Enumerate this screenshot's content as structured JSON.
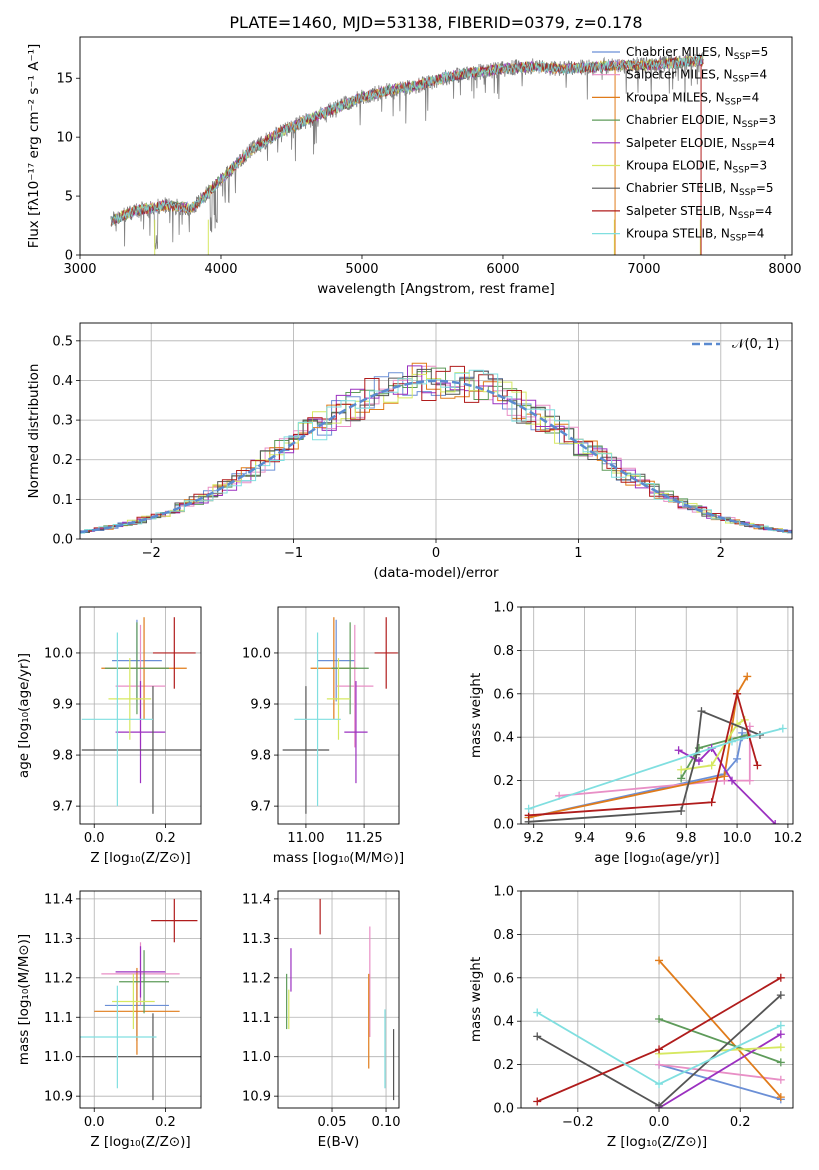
{
  "title": "PLATE=1460, MJD=53138, FIBERID=0379, z=0.178",
  "colors": {
    "Chabrier MILES": "#6b8fd6",
    "Salpeter MILES": "#e88fc6",
    "Kroupa MILES": "#e07b1a",
    "Chabrier ELODIE": "#5e9b5a",
    "Salpeter ELODIE": "#9b30c0",
    "Kroupa ELODIE": "#d6e860",
    "Chabrier STELIB": "#555555",
    "Salpeter STELIB": "#b01c1c",
    "Kroupa STELIB": "#80dfe0"
  },
  "legend_spectrum": [
    {
      "name": "Chabrier MILES",
      "label": "Chabrier MILES, N",
      "sub": "SSP",
      "tail": "=5"
    },
    {
      "name": "Salpeter MILES",
      "label": "Salpeter MILES, N",
      "sub": "SSP",
      "tail": "=4"
    },
    {
      "name": "Kroupa MILES",
      "label": "Kroupa MILES, N",
      "sub": "SSP",
      "tail": "=4"
    },
    {
      "name": "Chabrier ELODIE",
      "label": "Chabrier ELODIE, N",
      "sub": "SSP",
      "tail": "=3"
    },
    {
      "name": "Salpeter ELODIE",
      "label": "Salpeter ELODIE, N",
      "sub": "SSP",
      "tail": "=4"
    },
    {
      "name": "Kroupa ELODIE",
      "label": "Kroupa ELODIE, N",
      "sub": "SSP",
      "tail": "=3"
    },
    {
      "name": "Chabrier STELIB",
      "label": "Chabrier STELIB, N",
      "sub": "SSP",
      "tail": "=5"
    },
    {
      "name": "Salpeter STELIB",
      "label": "Salpeter STELIB, N",
      "sub": "SSP",
      "tail": "=4"
    },
    {
      "name": "Kroupa STELIB",
      "label": "Kroupa STELIB, N",
      "sub": "SSP",
      "tail": "=4"
    }
  ],
  "chart_data": [
    {
      "id": "spectrum",
      "type": "line",
      "xlabel": "wavelength [Angstrom, rest frame]",
      "ylabel": "Flux [fλ10⁻¹⁷ erg cm⁻² s⁻¹ A⁻¹]",
      "xlim": [
        3000,
        8050
      ],
      "ylim": [
        0,
        18.5
      ],
      "xticks": [
        3000,
        4000,
        5000,
        6000,
        7000,
        8000
      ],
      "yticks": [
        0,
        5,
        10,
        15
      ],
      "grid": false,
      "legend": "upper right",
      "continuum": {
        "x": [
          3220,
          3400,
          3600,
          3800,
          4000,
          4200,
          4400,
          4600,
          4800,
          5000,
          5200,
          5400,
          5600,
          5800,
          6000,
          6200,
          6400,
          6600,
          6800,
          7000,
          7200,
          7400
        ],
        "y": [
          2.9,
          3.8,
          4.2,
          4.0,
          6.4,
          8.8,
          10.3,
          11.4,
          12.4,
          13.4,
          14.0,
          14.4,
          15.1,
          15.5,
          15.8,
          16.0,
          15.8,
          15.9,
          16.1,
          16.1,
          16.3,
          16.5
        ]
      }
    },
    {
      "id": "residual-histogram",
      "type": "histogram",
      "xlabel": "(data-model)/error",
      "ylabel": "Normed distribution",
      "xlim": [
        -2.5,
        2.5
      ],
      "ylim": [
        0,
        0.545
      ],
      "xticks": [
        -2,
        -1,
        0,
        1,
        2
      ],
      "yticks": [
        0.0,
        0.1,
        0.2,
        0.3,
        0.4,
        0.5
      ],
      "grid": true,
      "legend": "upper right",
      "reference_curve": "𝒩(0, 1)",
      "bin_width": 0.1
    },
    {
      "id": "age-vs-Z",
      "type": "errorbar",
      "xlabel": "Z [log₁₀(Z/Z⊙)]",
      "ylabel": "age  [log₁₀(age/yr)]",
      "xlim": [
        -0.04,
        0.3
      ],
      "ylim": [
        9.665,
        10.09
      ],
      "xticks": [
        0.0,
        0.2
      ],
      "yticks": [
        9.7,
        9.8,
        9.9,
        10.0
      ],
      "grid": true,
      "points": [
        {
          "name": "Chabrier MILES",
          "x": 0.12,
          "xerr": 0.07,
          "y": 9.985,
          "yerr": 0.08
        },
        {
          "name": "Salpeter MILES",
          "x": 0.13,
          "xerr": 0.07,
          "y": 9.935,
          "yerr": 0.12
        },
        {
          "name": "Kroupa MILES",
          "x": 0.14,
          "xerr": 0.12,
          "y": 9.97,
          "yerr": 0.1
        },
        {
          "name": "Chabrier ELODIE",
          "x": 0.12,
          "xerr": 0.09,
          "y": 9.97,
          "yerr": 0.09
        },
        {
          "name": "Salpeter ELODIE",
          "x": 0.13,
          "xerr": 0.07,
          "y": 9.845,
          "yerr": 0.1
        },
        {
          "name": "Kroupa ELODIE",
          "x": 0.1,
          "xerr": 0.06,
          "y": 9.91,
          "yerr": 0.08
        },
        {
          "name": "Chabrier STELIB",
          "x": 0.165,
          "xerr": 0.2,
          "y": 9.81,
          "yerr": 0.125
        },
        {
          "name": "Salpeter STELIB",
          "x": 0.225,
          "xerr": 0.06,
          "y": 10.0,
          "yerr": 0.07
        },
        {
          "name": "Kroupa STELIB",
          "x": 0.065,
          "xerr": 0.1,
          "y": 9.87,
          "yerr": 0.17
        }
      ]
    },
    {
      "id": "age-vs-mass",
      "type": "errorbar",
      "xlabel": "mass [log₁₀(M/M⊙)]",
      "ylabel": "",
      "xlim": [
        10.88,
        11.4
      ],
      "ylim": [
        9.665,
        10.09
      ],
      "xticks": [
        11.0,
        11.25
      ],
      "yticks": [
        9.7,
        9.8,
        9.9,
        10.0
      ],
      "grid": true,
      "points": [
        {
          "name": "Chabrier MILES",
          "x": 11.13,
          "xerr": 0.08,
          "y": 9.985,
          "yerr": 0.08
        },
        {
          "name": "Salpeter MILES",
          "x": 11.21,
          "xerr": 0.08,
          "y": 9.935,
          "yerr": 0.12
        },
        {
          "name": "Kroupa MILES",
          "x": 11.12,
          "xerr": 0.1,
          "y": 9.97,
          "yerr": 0.1
        },
        {
          "name": "Chabrier ELODIE",
          "x": 11.19,
          "xerr": 0.08,
          "y": 9.97,
          "yerr": 0.09
        },
        {
          "name": "Salpeter ELODIE",
          "x": 11.215,
          "xerr": 0.05,
          "y": 9.845,
          "yerr": 0.1
        },
        {
          "name": "Kroupa ELODIE",
          "x": 11.14,
          "xerr": 0.05,
          "y": 9.91,
          "yerr": 0.08
        },
        {
          "name": "Chabrier STELIB",
          "x": 11.0,
          "xerr": 0.1,
          "y": 9.81,
          "yerr": 0.125
        },
        {
          "name": "Salpeter STELIB",
          "x": 11.345,
          "xerr": 0.05,
          "y": 10.0,
          "yerr": 0.07
        },
        {
          "name": "Kroupa STELIB",
          "x": 11.05,
          "xerr": 0.1,
          "y": 9.87,
          "yerr": 0.17
        }
      ]
    },
    {
      "id": "mass-weight-vs-age",
      "type": "line",
      "xlabel": "age  [log₁₀(age/yr)]",
      "ylabel": "mass weight",
      "xlim": [
        9.15,
        10.22
      ],
      "ylim": [
        0,
        1
      ],
      "xticks": [
        9.2,
        9.4,
        9.6,
        9.8,
        10.0,
        10.2
      ],
      "yticks": [
        0.0,
        0.2,
        0.4,
        0.6,
        0.8,
        1.0
      ],
      "grid": true,
      "series": [
        {
          "name": "Chabrier MILES",
          "x": [
            9.18,
            9.95,
            10.0,
            10.02,
            10.02
          ],
          "y": [
            0.03,
            0.23,
            0.3,
            0.42,
            0.4
          ]
        },
        {
          "name": "Salpeter MILES",
          "x": [
            9.3,
            9.95,
            10.05,
            10.05
          ],
          "y": [
            0.13,
            0.2,
            0.2,
            0.45
          ]
        },
        {
          "name": "Kroupa MILES",
          "x": [
            9.18,
            9.95,
            10.0,
            10.04
          ],
          "y": [
            0.03,
            0.22,
            0.6,
            0.68
          ]
        },
        {
          "name": "Chabrier ELODIE",
          "x": [
            9.78,
            9.85,
            10.04
          ],
          "y": [
            0.21,
            0.35,
            0.41
          ]
        },
        {
          "name": "Salpeter ELODIE",
          "x": [
            9.77,
            9.85,
            9.9,
            9.98,
            10.15
          ],
          "y": [
            0.34,
            0.29,
            0.35,
            0.2,
            0.0
          ]
        },
        {
          "name": "Kroupa ELODIE",
          "x": [
            9.78,
            9.9,
            10.0,
            10.03
          ],
          "y": [
            0.25,
            0.27,
            0.46,
            0.48
          ]
        },
        {
          "name": "Chabrier STELIB",
          "x": [
            9.18,
            9.78,
            9.84,
            9.86,
            10.09
          ],
          "y": [
            0.01,
            0.06,
            0.32,
            0.52,
            0.41
          ]
        },
        {
          "name": "Salpeter STELIB",
          "x": [
            9.18,
            9.9,
            10.0,
            10.08
          ],
          "y": [
            0.04,
            0.1,
            0.6,
            0.27
          ]
        },
        {
          "name": "Kroupa STELIB",
          "x": [
            9.18,
            9.98,
            10.18
          ],
          "y": [
            0.07,
            0.38,
            0.44
          ]
        }
      ]
    },
    {
      "id": "mass-vs-Z",
      "type": "errorbar",
      "xlabel": "Z [log₁₀(Z/Z⊙)]",
      "ylabel": "mass [log₁₀(M/M⊙)]",
      "xlim": [
        -0.04,
        0.3
      ],
      "ylim": [
        10.87,
        11.42
      ],
      "xticks": [
        0.0,
        0.2
      ],
      "yticks": [
        10.9,
        11.0,
        11.1,
        11.2,
        11.3,
        11.4
      ],
      "grid": true,
      "points": [
        {
          "name": "Chabrier MILES",
          "x": 0.12,
          "xerr": 0.09,
          "y": 11.13,
          "yerr": 0.09
        },
        {
          "name": "Salpeter MILES",
          "x": 0.13,
          "xerr": 0.11,
          "y": 11.21,
          "yerr": 0.08
        },
        {
          "name": "Kroupa MILES",
          "x": 0.12,
          "xerr": 0.12,
          "y": 11.115,
          "yerr": 0.11
        },
        {
          "name": "Chabrier ELODIE",
          "x": 0.14,
          "xerr": 0.07,
          "y": 11.19,
          "yerr": 0.08
        },
        {
          "name": "Salpeter ELODIE",
          "x": 0.13,
          "xerr": 0.07,
          "y": 11.215,
          "yerr": 0.065
        },
        {
          "name": "Kroupa ELODIE",
          "x": 0.11,
          "xerr": 0.06,
          "y": 11.14,
          "yerr": 0.07
        },
        {
          "name": "Chabrier STELIB",
          "x": 0.165,
          "xerr": 0.2,
          "y": 11.0,
          "yerr": 0.11
        },
        {
          "name": "Salpeter STELIB",
          "x": 0.225,
          "xerr": 0.065,
          "y": 11.345,
          "yerr": 0.055
        },
        {
          "name": "Kroupa STELIB",
          "x": 0.065,
          "xerr": 0.11,
          "y": 11.05,
          "yerr": 0.13
        }
      ]
    },
    {
      "id": "mass-vs-EBV",
      "type": "errorbar",
      "xlabel": "E(B-V)",
      "ylabel": "",
      "xlim": [
        0.0,
        0.112
      ],
      "ylim": [
        10.87,
        11.42
      ],
      "xticks": [
        0.05,
        0.1
      ],
      "yticks": [
        10.9,
        11.0,
        11.1,
        11.2,
        11.3,
        11.4
      ],
      "grid": true,
      "points": [
        {
          "name": "Salpeter MILES",
          "x": 0.085,
          "xerr": 0,
          "y": 11.19,
          "yerr": 0.14
        },
        {
          "name": "Kroupa MILES",
          "x": 0.084,
          "xerr": 0,
          "y": 11.09,
          "yerr": 0.12
        },
        {
          "name": "Chabrier ELODIE",
          "x": 0.008,
          "xerr": 0,
          "y": 11.14,
          "yerr": 0.07
        },
        {
          "name": "Salpeter ELODIE",
          "x": 0.012,
          "xerr": 0,
          "y": 11.22,
          "yerr": 0.055
        },
        {
          "name": "Kroupa ELODIE",
          "x": 0.01,
          "xerr": 0,
          "y": 11.12,
          "yerr": 0.05
        },
        {
          "name": "Chabrier STELIB",
          "x": 0.107,
          "xerr": 0,
          "y": 10.98,
          "yerr": 0.09
        },
        {
          "name": "Salpeter STELIB",
          "x": 0.039,
          "xerr": 0,
          "y": 11.355,
          "yerr": 0.045
        },
        {
          "name": "Kroupa STELIB",
          "x": 0.099,
          "xerr": 0,
          "y": 11.02,
          "yerr": 0.1
        }
      ]
    },
    {
      "id": "mass-weight-vs-Z",
      "type": "line",
      "xlabel": "Z [log₁₀(Z/Z⊙)]",
      "ylabel": "mass weight",
      "xlim": [
        -0.34,
        0.33
      ],
      "ylim": [
        0,
        1
      ],
      "xticks": [
        -0.2,
        0.0,
        0.2
      ],
      "yticks": [
        0.0,
        0.2,
        0.4,
        0.6,
        0.8,
        1.0
      ],
      "grid": true,
      "series": [
        {
          "name": "Chabrier MILES",
          "x": [
            0.0,
            0.3
          ],
          "y": [
            0.2,
            0.04
          ]
        },
        {
          "name": "Salpeter MILES",
          "x": [
            0.0,
            0.3
          ],
          "y": [
            0.2,
            0.13
          ]
        },
        {
          "name": "Kroupa MILES",
          "x": [
            0.0,
            0.3
          ],
          "y": [
            0.68,
            0.05
          ]
        },
        {
          "name": "Chabrier ELODIE",
          "x": [
            0.0,
            0.3
          ],
          "y": [
            0.41,
            0.21
          ]
        },
        {
          "name": "Salpeter ELODIE",
          "x": [
            0.0,
            0.3
          ],
          "y": [
            0.0,
            0.34
          ]
        },
        {
          "name": "Kroupa ELODIE",
          "x": [
            0.0,
            0.3
          ],
          "y": [
            0.25,
            0.28
          ]
        },
        {
          "name": "Chabrier STELIB",
          "x": [
            -0.3,
            0.0,
            0.3
          ],
          "y": [
            0.33,
            0.01,
            0.52
          ]
        },
        {
          "name": "Salpeter STELIB",
          "x": [
            -0.3,
            0.0,
            0.3
          ],
          "y": [
            0.03,
            0.27,
            0.6
          ]
        },
        {
          "name": "Kroupa STELIB",
          "x": [
            -0.3,
            0.0,
            0.3
          ],
          "y": [
            0.44,
            0.11,
            0.38
          ]
        }
      ]
    }
  ]
}
